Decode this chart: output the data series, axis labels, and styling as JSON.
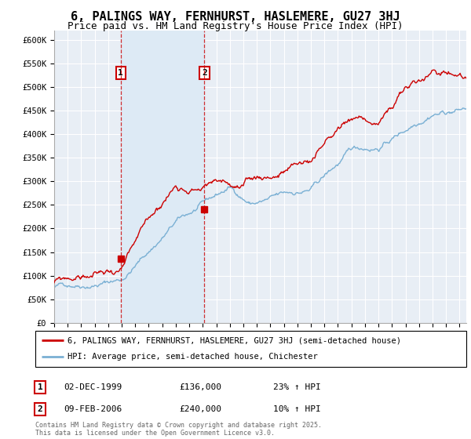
{
  "title": "6, PALINGS WAY, FERNHURST, HASLEMERE, GU27 3HJ",
  "subtitle": "Price paid vs. HM Land Registry's House Price Index (HPI)",
  "ylabel_ticks": [
    "£0",
    "£50K",
    "£100K",
    "£150K",
    "£200K",
    "£250K",
    "£300K",
    "£350K",
    "£400K",
    "£450K",
    "£500K",
    "£550K",
    "£600K"
  ],
  "ylim": [
    0,
    620000
  ],
  "ytick_vals": [
    0,
    50000,
    100000,
    150000,
    200000,
    250000,
    300000,
    350000,
    400000,
    450000,
    500000,
    550000,
    600000
  ],
  "purchase1": {
    "date_num": 1999.92,
    "price": 136000,
    "label": "1",
    "hpi_pct": "23% ↑ HPI",
    "date_str": "02-DEC-1999"
  },
  "purchase2": {
    "date_num": 2006.12,
    "price": 240000,
    "label": "2",
    "hpi_pct": "10% ↑ HPI",
    "date_str": "09-FEB-2006"
  },
  "line1_color": "#cc0000",
  "line2_color": "#7ab0d4",
  "shade_color": "#ddeaf5",
  "background_color": "#e8eef5",
  "grid_color": "#ffffff",
  "legend1": "6, PALINGS WAY, FERNHURST, HASLEMERE, GU27 3HJ (semi-detached house)",
  "legend2": "HPI: Average price, semi-detached house, Chichester",
  "footer": "Contains HM Land Registry data © Crown copyright and database right 2025.\nThis data is licensed under the Open Government Licence v3.0.",
  "xstart": 1995,
  "xend": 2025.5,
  "title_fontsize": 11,
  "subtitle_fontsize": 9
}
